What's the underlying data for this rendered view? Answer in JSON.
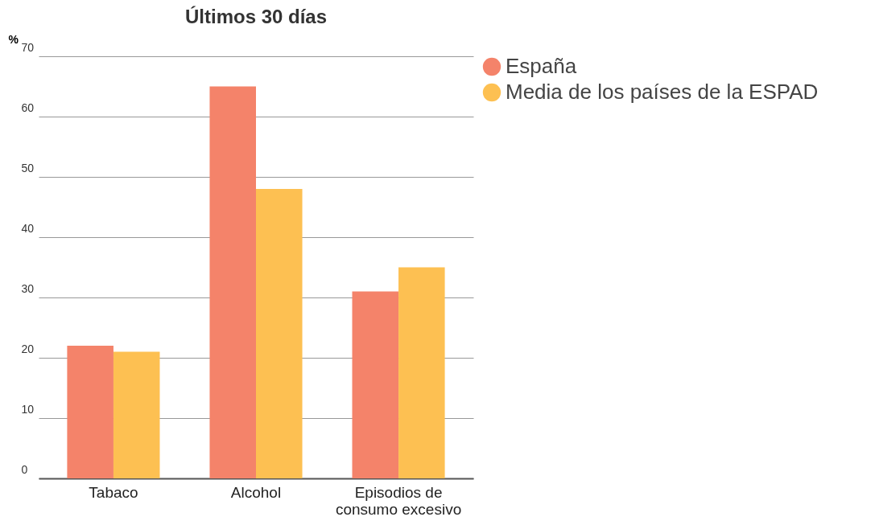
{
  "chart_data": {
    "type": "bar",
    "title": "Últimos 30 días",
    "ylabel": "%",
    "categories": [
      "Tabaco",
      "Alcohol",
      "Episodios de consumo excesivo"
    ],
    "series": [
      {
        "name": "España",
        "color": "#f4836a",
        "values": [
          22,
          65,
          31
        ]
      },
      {
        "name": "Media de los países de la ESPAD",
        "color": "#fdc052",
        "values": [
          21,
          48,
          35
        ]
      }
    ],
    "ylim": [
      0,
      70
    ],
    "yticks": [
      0,
      10,
      20,
      30,
      40,
      50,
      60,
      70
    ],
    "grid": "y",
    "legend": "right"
  }
}
